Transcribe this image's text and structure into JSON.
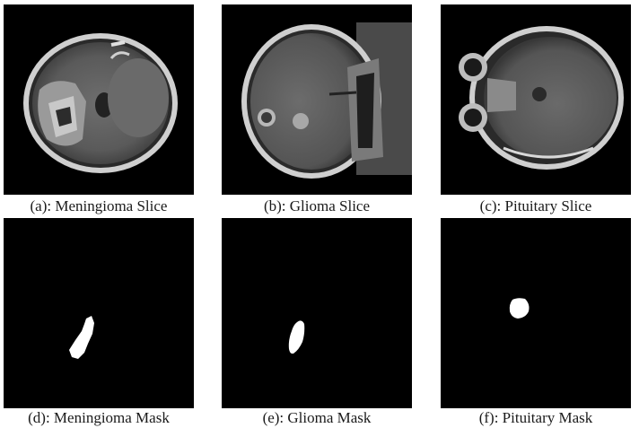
{
  "figure": {
    "panels": [
      {
        "id": "a",
        "caption": "(a): Meningioma Slice",
        "kind": "mri-slice"
      },
      {
        "id": "b",
        "caption": "(b): Glioma Slice",
        "kind": "mri-slice"
      },
      {
        "id": "c",
        "caption": "(c): Pituitary Slice",
        "kind": "mri-slice"
      },
      {
        "id": "d",
        "caption": "(d): Meningioma Mask",
        "kind": "tumor-mask"
      },
      {
        "id": "e",
        "caption": "(e): Glioma Mask",
        "kind": "tumor-mask"
      },
      {
        "id": "f",
        "caption": "(f): Pituitary Mask",
        "kind": "tumor-mask"
      }
    ]
  }
}
